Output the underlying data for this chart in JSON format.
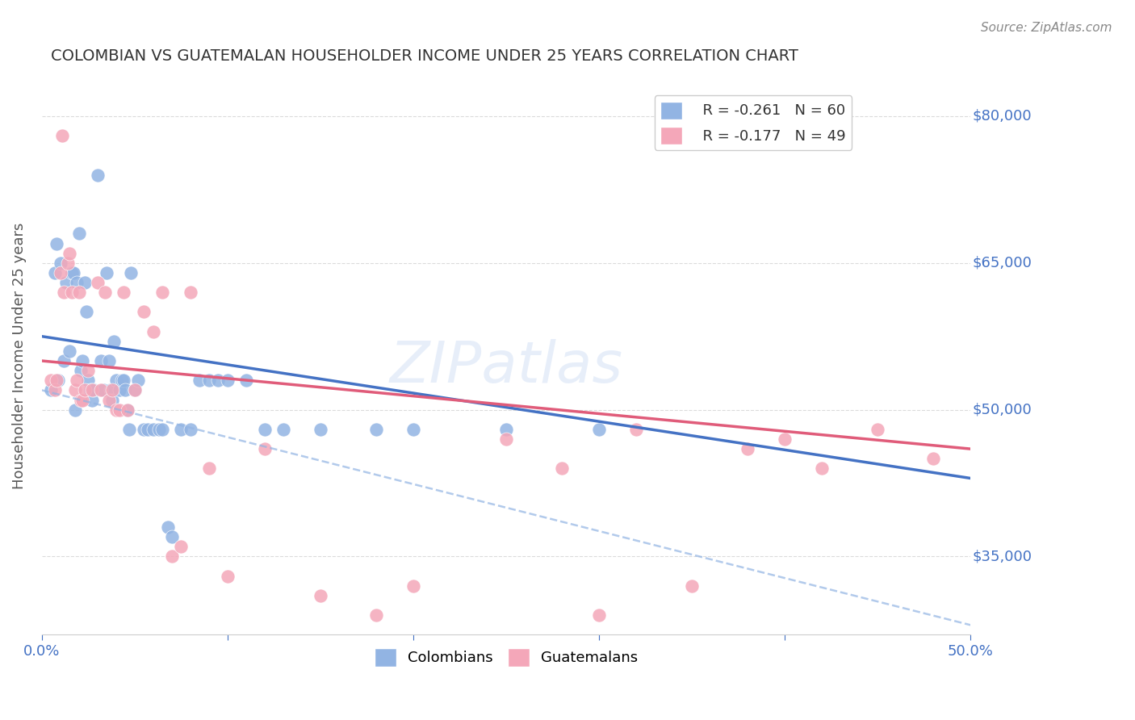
{
  "title": "COLOMBIAN VS GUATEMALAN HOUSEHOLDER INCOME UNDER 25 YEARS CORRELATION CHART",
  "source": "Source: ZipAtlas.com",
  "ylabel": "Householder Income Under 25 years",
  "xlabel": "",
  "xlim": [
    0.0,
    0.5
  ],
  "ylim": [
    27000,
    84000
  ],
  "yticks": [
    35000,
    50000,
    65000,
    80000
  ],
  "ytick_labels": [
    "$35,000",
    "$50,000",
    "$65,000",
    "$80,000"
  ],
  "xticks": [
    0.0,
    0.1,
    0.2,
    0.3,
    0.4,
    0.5
  ],
  "xtick_labels": [
    "0.0%",
    "",
    "",
    "",
    "",
    "50.0%"
  ],
  "legend_r1": "R = -0.261",
  "legend_n1": "N = 60",
  "legend_r2": "R = -0.177",
  "legend_n2": "N = 49",
  "colombian_color": "#92b4e3",
  "guatemalan_color": "#f4a7b9",
  "trend_blue": "#4472c4",
  "trend_pink": "#e05c7a",
  "trend_dashed": "#92b4e3",
  "background": "#ffffff",
  "grid_color": "#cccccc",
  "axis_label_color": "#4472c4",
  "title_color": "#333333",
  "watermark": "ZIPatlas",
  "colombians_x": [
    0.005,
    0.007,
    0.008,
    0.009,
    0.01,
    0.012,
    0.013,
    0.015,
    0.016,
    0.017,
    0.018,
    0.019,
    0.02,
    0.021,
    0.022,
    0.023,
    0.024,
    0.025,
    0.026,
    0.027,
    0.028,
    0.03,
    0.032,
    0.033,
    0.035,
    0.036,
    0.037,
    0.038,
    0.039,
    0.04,
    0.042,
    0.043,
    0.044,
    0.045,
    0.046,
    0.047,
    0.048,
    0.05,
    0.052,
    0.055,
    0.057,
    0.06,
    0.063,
    0.065,
    0.068,
    0.07,
    0.075,
    0.08,
    0.085,
    0.09,
    0.095,
    0.1,
    0.11,
    0.12,
    0.13,
    0.15,
    0.18,
    0.2,
    0.25,
    0.3
  ],
  "colombians_y": [
    52000,
    64000,
    67000,
    53000,
    65000,
    55000,
    63000,
    56000,
    64000,
    64000,
    50000,
    63000,
    68000,
    54000,
    55000,
    63000,
    60000,
    53000,
    52000,
    51000,
    52000,
    74000,
    55000,
    52000,
    64000,
    55000,
    52000,
    51000,
    57000,
    53000,
    52000,
    53000,
    53000,
    52000,
    50000,
    48000,
    64000,
    52000,
    53000,
    48000,
    48000,
    48000,
    48000,
    48000,
    38000,
    37000,
    48000,
    48000,
    53000,
    53000,
    53000,
    53000,
    53000,
    48000,
    48000,
    48000,
    48000,
    48000,
    48000,
    48000
  ],
  "guatemalans_x": [
    0.005,
    0.007,
    0.008,
    0.01,
    0.011,
    0.012,
    0.014,
    0.015,
    0.016,
    0.018,
    0.019,
    0.02,
    0.021,
    0.022,
    0.023,
    0.025,
    0.027,
    0.03,
    0.032,
    0.034,
    0.036,
    0.038,
    0.04,
    0.042,
    0.044,
    0.046,
    0.05,
    0.055,
    0.06,
    0.065,
    0.07,
    0.075,
    0.08,
    0.09,
    0.1,
    0.12,
    0.15,
    0.18,
    0.2,
    0.25,
    0.28,
    0.3,
    0.32,
    0.35,
    0.38,
    0.4,
    0.42,
    0.45,
    0.48
  ],
  "guatemalans_y": [
    53000,
    52000,
    53000,
    64000,
    78000,
    62000,
    65000,
    66000,
    62000,
    52000,
    53000,
    62000,
    51000,
    51000,
    52000,
    54000,
    52000,
    63000,
    52000,
    62000,
    51000,
    52000,
    50000,
    50000,
    62000,
    50000,
    52000,
    60000,
    58000,
    62000,
    35000,
    36000,
    62000,
    44000,
    33000,
    46000,
    31000,
    29000,
    32000,
    47000,
    44000,
    29000,
    48000,
    32000,
    46000,
    47000,
    44000,
    48000,
    45000
  ]
}
